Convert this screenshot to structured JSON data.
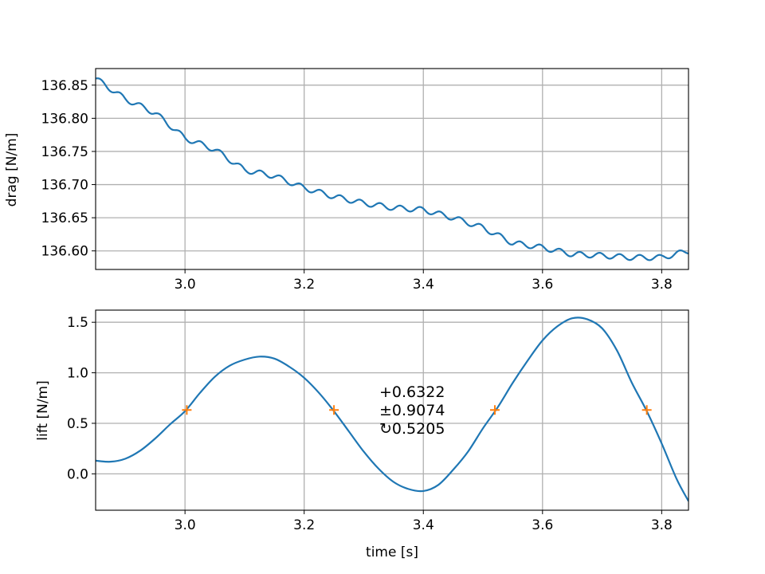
{
  "colors": {
    "series": "#1f77b4",
    "markers": "#ff7f0e",
    "grid": "#b0b0b0",
    "axes": "#000000"
  },
  "chart_data": [
    {
      "type": "line",
      "ylabel": "drag [N/m]",
      "xlabel": "",
      "xlim": [
        2.85,
        3.845
      ],
      "ylim": [
        136.572,
        136.875
      ],
      "grid": true,
      "xticks": [
        3.0,
        3.2,
        3.4,
        3.6,
        3.8
      ],
      "xtick_labels": [
        "3.0",
        "3.2",
        "3.4",
        "3.6",
        "3.8"
      ],
      "yticks": [
        136.6,
        136.65,
        136.7,
        136.75,
        136.8,
        136.85
      ],
      "ytick_labels": [
        "136.60",
        "136.65",
        "136.70",
        "136.75",
        "136.80",
        "136.85"
      ],
      "series": [
        {
          "x": [
            2.85,
            2.9,
            2.95,
            3.0,
            3.05,
            3.1,
            3.15,
            3.2,
            3.25,
            3.3,
            3.35,
            3.4,
            3.45,
            3.5,
            3.55,
            3.6,
            3.65,
            3.7,
            3.75,
            3.8,
            3.845
          ],
          "y": [
            136.86,
            136.829,
            136.808,
            136.77,
            136.753,
            136.722,
            136.713,
            136.695,
            136.682,
            136.672,
            136.665,
            136.662,
            136.65,
            136.635,
            136.612,
            136.605,
            136.595,
            136.593,
            136.59,
            136.59,
            136.6
          ]
        }
      ],
      "ripple_amplitude": 0.004
    },
    {
      "type": "line",
      "ylabel": "lift [N/m]",
      "xlabel": "time [s]",
      "xlim": [
        2.85,
        3.845
      ],
      "ylim": [
        -0.36,
        1.62
      ],
      "grid": true,
      "xticks": [
        3.0,
        3.2,
        3.4,
        3.6,
        3.8
      ],
      "xtick_labels": [
        "3.0",
        "3.2",
        "3.4",
        "3.6",
        "3.8"
      ],
      "yticks": [
        0.0,
        0.5,
        1.0,
        1.5
      ],
      "ytick_labels": [
        "0.0",
        "0.5",
        "1.0",
        "1.5"
      ],
      "series": [
        {
          "x": [
            2.85,
            2.875,
            2.9,
            2.925,
            2.95,
            2.975,
            3.0,
            3.025,
            3.05,
            3.075,
            3.1,
            3.125,
            3.15,
            3.175,
            3.2,
            3.225,
            3.25,
            3.275,
            3.3,
            3.325,
            3.35,
            3.375,
            3.4,
            3.425,
            3.45,
            3.475,
            3.5,
            3.525,
            3.55,
            3.575,
            3.6,
            3.625,
            3.65,
            3.675,
            3.7,
            3.725,
            3.75,
            3.775,
            3.8,
            3.825,
            3.845
          ],
          "y": [
            0.13,
            0.12,
            0.15,
            0.23,
            0.35,
            0.49,
            0.62,
            0.8,
            0.96,
            1.07,
            1.13,
            1.16,
            1.14,
            1.06,
            0.95,
            0.8,
            0.62,
            0.42,
            0.22,
            0.05,
            -0.08,
            -0.15,
            -0.17,
            -0.11,
            0.04,
            0.22,
            0.45,
            0.66,
            0.9,
            1.12,
            1.32,
            1.46,
            1.54,
            1.53,
            1.44,
            1.22,
            0.9,
            0.62,
            0.3,
            -0.05,
            -0.27
          ]
        }
      ],
      "markers": {
        "x": [
          3.003,
          3.25,
          3.52,
          3.775
        ],
        "y": [
          0.6322,
          0.6322,
          0.6322,
          0.6322
        ]
      },
      "annotation": [
        "+0.6322",
        "±0.9074",
        "↻0.5205"
      ],
      "annotation_anchor": [
        3.335,
        0.6322
      ]
    }
  ]
}
